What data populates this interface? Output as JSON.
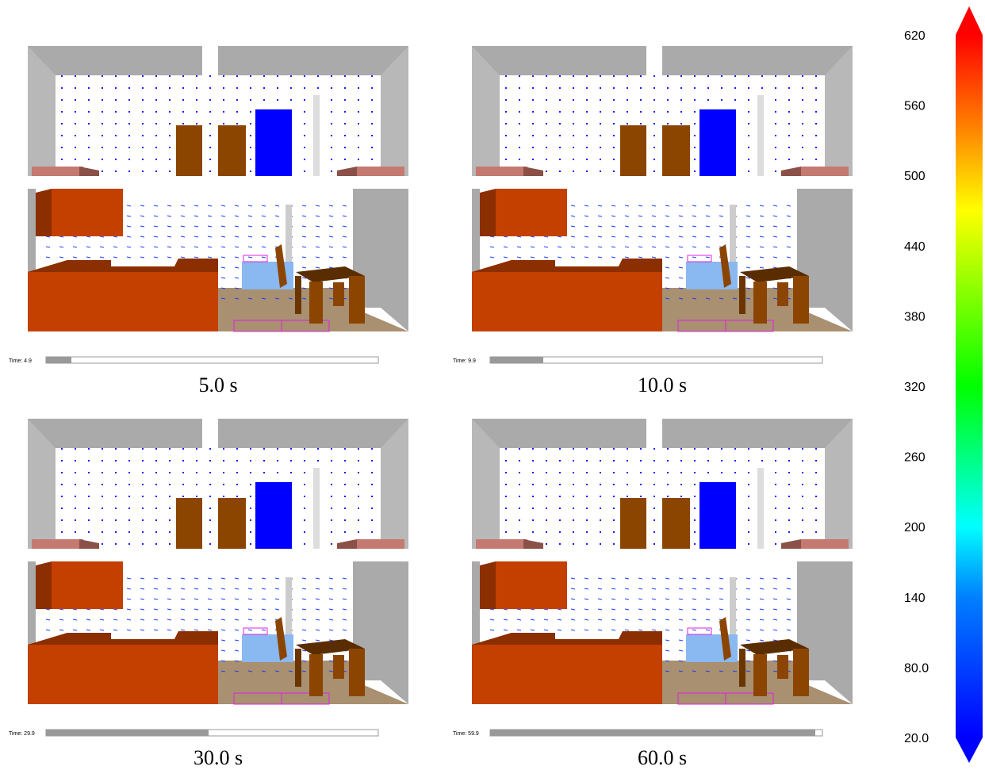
{
  "panels": [
    {
      "time_label": "Time: 4.9",
      "caption": "5.0 s"
    },
    {
      "time_label": "Time: 9.9",
      "caption": "10.0 s"
    },
    {
      "time_label": "Time: 29.9",
      "caption": "30.0 s"
    },
    {
      "time_label": "Time: 59.9",
      "caption": "60.0 s"
    }
  ],
  "colorbar": {
    "clim": [
      20,
      620
    ],
    "ticks": [
      620,
      560,
      500,
      440,
      380,
      320,
      260,
      200,
      140,
      {
        "value": 80,
        "label": "80.0"
      },
      {
        "value": 20,
        "label": "20.0"
      }
    ]
  }
}
